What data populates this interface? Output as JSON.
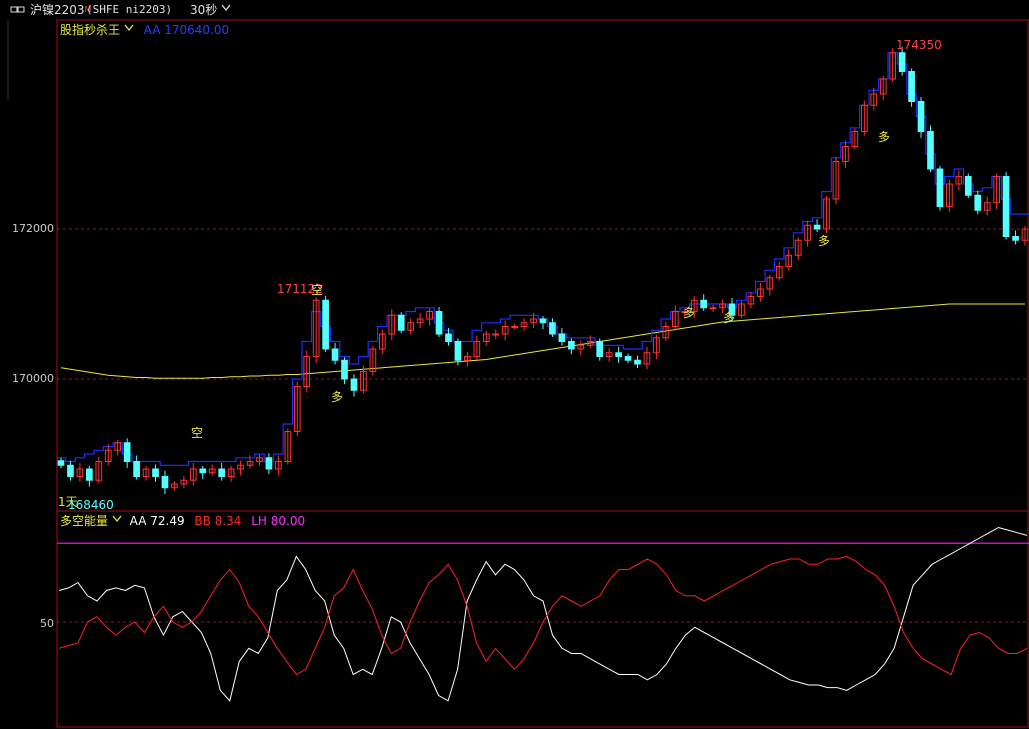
{
  "titlebar": {
    "icon": "window-icon",
    "symbol": "沪镍2203",
    "symbol_flag": "M",
    "code": "(SHFE ni2203)",
    "period": "30秒"
  },
  "main_panel": {
    "indicator_name": "股指秒杀王",
    "aa_text": "AA 170640.00",
    "y_ticks": [
      "172000",
      "170000"
    ],
    "high_label": "174350",
    "peak_left_label": "171122",
    "low_label": "168460",
    "day_label": "1天",
    "signals": {
      "kong": "空",
      "duo": "多"
    }
  },
  "sub_panel": {
    "indicator_name": "多空能量",
    "aa_text": "AA 72.49",
    "bb_text": "BB 8.34",
    "lh_text": "LH 80.00",
    "y_tick": "50"
  },
  "colors": {
    "up": "#ff3232",
    "down": "#54ffff",
    "blue": "#1b2fff",
    "yellow": "#e8e83c",
    "magenta": "#ff00ff",
    "white": "#ffffff",
    "red": "#ff2020",
    "border": "#a01010"
  },
  "chart_data": [
    {
      "type": "candlestick",
      "title": "股指秒杀王",
      "y_ticks": [
        172000,
        170000
      ],
      "ylim": [
        168400,
        174700
      ],
      "high": 174350,
      "low": 168460,
      "close_series": [
        168850,
        168700,
        168800,
        168650,
        168900,
        169050,
        169150,
        168900,
        168700,
        168800,
        168700,
        168550,
        168600,
        168650,
        168800,
        168750,
        168800,
        168700,
        168800,
        168850,
        168900,
        168950,
        168800,
        168900,
        169300,
        169900,
        170300,
        171050,
        170400,
        170250,
        170000,
        169850,
        170100,
        170400,
        170600,
        170850,
        170650,
        170750,
        170800,
        170900,
        170600,
        170500,
        170250,
        170300,
        170500,
        170600,
        170600,
        170700,
        170700,
        170750,
        170800,
        170750,
        170600,
        170500,
        170400,
        170450,
        170500,
        170300,
        170350,
        170300,
        170250,
        170200,
        170350,
        170550,
        170700,
        170900,
        170900,
        171050,
        170950,
        170950,
        171000,
        170850,
        171000,
        171100,
        171200,
        171350,
        171500,
        171650,
        171850,
        172050,
        172000,
        172400,
        172900,
        173100,
        173300,
        173650,
        173800,
        174000,
        174350,
        174100,
        173700,
        173300,
        172800,
        172300,
        172600,
        172700,
        172450,
        172250,
        172350,
        172700,
        171900,
        171850,
        172000
      ],
      "aa_band": [
        168950,
        168900,
        168950,
        169000,
        169050,
        169100,
        169150,
        169000,
        168900,
        168900,
        168900,
        168850,
        168850,
        168850,
        168900,
        168900,
        168900,
        168900,
        168900,
        168950,
        168950,
        169000,
        168900,
        169000,
        169400,
        170000,
        170500,
        170900,
        170700,
        170500,
        170300,
        170200,
        170300,
        170500,
        170700,
        170850,
        170850,
        170900,
        170950,
        170950,
        170750,
        170650,
        170500,
        170500,
        170650,
        170750,
        170750,
        170800,
        170850,
        170850,
        170850,
        170800,
        170700,
        170600,
        170550,
        170550,
        170550,
        170450,
        170450,
        170450,
        170400,
        170400,
        170500,
        170650,
        170800,
        170900,
        170950,
        171000,
        171000,
        171000,
        171000,
        170950,
        171050,
        171150,
        171300,
        171450,
        171600,
        171750,
        171950,
        172100,
        172150,
        172500,
        172950,
        173150,
        173350,
        173650,
        173850,
        174000,
        174350,
        174200,
        173800,
        173500,
        173000,
        172600,
        172700,
        172800,
        172600,
        172500,
        172550,
        172700,
        172400,
        172200,
        172200
      ],
      "ma_line": [
        170150,
        170130,
        170110,
        170090,
        170070,
        170050,
        170040,
        170030,
        170020,
        170020,
        170010,
        170010,
        170010,
        170010,
        170010,
        170010,
        170020,
        170020,
        170030,
        170030,
        170040,
        170040,
        170050,
        170050,
        170060,
        170060,
        170070,
        170080,
        170090,
        170100,
        170110,
        170120,
        170130,
        170140,
        170150,
        170160,
        170170,
        170180,
        170190,
        170200,
        170210,
        170220,
        170230,
        170240,
        170250,
        170260,
        170280,
        170300,
        170320,
        170340,
        170360,
        170380,
        170400,
        170420,
        170440,
        170460,
        170480,
        170500,
        170520,
        170540,
        170560,
        170580,
        170600,
        170620,
        170640,
        170660,
        170680,
        170700,
        170720,
        170740,
        170760,
        170770,
        170780,
        170790,
        170800,
        170810,
        170820,
        170830,
        170840,
        170850,
        170860,
        170870,
        170880,
        170890,
        170900,
        170910,
        170920,
        170930,
        170940,
        170950,
        170960,
        170970,
        170980,
        170990,
        171000,
        171000,
        171000,
        171000,
        171000,
        171000,
        171000,
        171000,
        171000
      ]
    },
    {
      "type": "line",
      "title": "多空能量",
      "y_ticks": [
        50
      ],
      "ylim": [
        10,
        90
      ],
      "LH": 80,
      "series": [
        {
          "name": "AA",
          "values": [
            62,
            63,
            65,
            60,
            58,
            62,
            63,
            62,
            64,
            63,
            52,
            45,
            52,
            54,
            50,
            46,
            38,
            24,
            20,
            35,
            40,
            38,
            44,
            62,
            66,
            75,
            70,
            62,
            58,
            45,
            40,
            30,
            32,
            30,
            40,
            52,
            50,
            42,
            36,
            30,
            22,
            20,
            32,
            58,
            66,
            73,
            68,
            72,
            70,
            66,
            60,
            58,
            45,
            40,
            38,
            38,
            36,
            34,
            32,
            30,
            30,
            30,
            28,
            30,
            34,
            40,
            45,
            48,
            46,
            44,
            42,
            40,
            38,
            36,
            34,
            32,
            30,
            28,
            27,
            26,
            26,
            25,
            25,
            24,
            26,
            28,
            30,
            34,
            40,
            52,
            64,
            68,
            72,
            74,
            76,
            78,
            80,
            82,
            84,
            86,
            85,
            84,
            83
          ]
        },
        {
          "name": "BB",
          "values": [
            40,
            41,
            42,
            50,
            52,
            48,
            45,
            48,
            50,
            46,
            52,
            56,
            50,
            48,
            50,
            54,
            60,
            66,
            70,
            65,
            56,
            52,
            46,
            40,
            35,
            30,
            32,
            40,
            48,
            60,
            63,
            70,
            62,
            55,
            45,
            38,
            40,
            50,
            58,
            65,
            68,
            72,
            66,
            56,
            42,
            35,
            40,
            36,
            32,
            36,
            42,
            50,
            56,
            60,
            58,
            56,
            58,
            60,
            66,
            70,
            70,
            72,
            74,
            72,
            68,
            62,
            60,
            60,
            58,
            60,
            62,
            64,
            66,
            68,
            70,
            72,
            73,
            74,
            74,
            72,
            72,
            74,
            74,
            75,
            73,
            70,
            68,
            64,
            56,
            46,
            40,
            36,
            34,
            32,
            30,
            40,
            45,
            46,
            44,
            40,
            38,
            38,
            40
          ]
        }
      ]
    }
  ]
}
